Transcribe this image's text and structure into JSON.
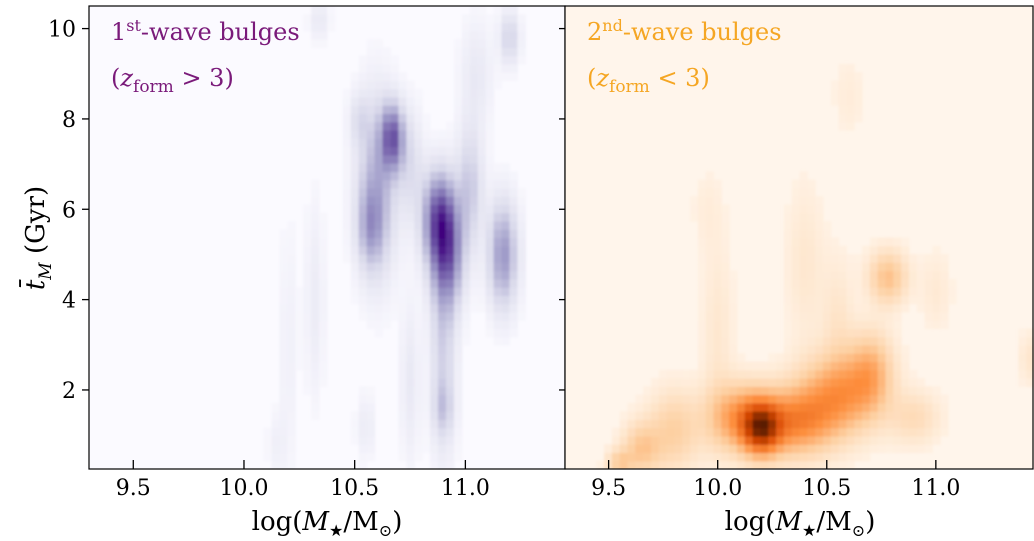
{
  "chart_data": [
    {
      "type": "heatmap",
      "panel": "left",
      "colormap": "Purples",
      "background_color": "#fbfaff",
      "peak_color": "#3f007d",
      "annotation_color": "#7a1a7a",
      "annotation": {
        "line1_pre": "1",
        "line1_sup": "st",
        "line1_post": "-wave bulges",
        "line2_open": "(",
        "line2_var": "z",
        "line2_sub": "form",
        "line2_rel": " > 3)"
      },
      "xlabel": {
        "pre": "log(",
        "var": "M",
        "sub": "★",
        "mid": "/M",
        "sub2": "⊙",
        "post": ")"
      },
      "xlim": [
        9.3,
        11.45
      ],
      "ylim": [
        0.25,
        10.5
      ],
      "xticks": [
        9.5,
        10.0,
        10.5,
        11.0
      ],
      "xtick_labels": [
        "9.5",
        "10.0",
        "10.5",
        "11.0"
      ],
      "blobs": [
        {
          "x": 10.67,
          "y": 7.6,
          "sx": 0.035,
          "sy": 0.5,
          "w": 0.95
        },
        {
          "x": 10.6,
          "y": 6.5,
          "sx": 0.06,
          "sy": 1.3,
          "w": 0.55
        },
        {
          "x": 10.57,
          "y": 5.6,
          "sx": 0.04,
          "sy": 0.6,
          "w": 0.4
        },
        {
          "x": 10.88,
          "y": 5.8,
          "sx": 0.05,
          "sy": 0.7,
          "w": 1.0
        },
        {
          "x": 10.92,
          "y": 5.0,
          "sx": 0.05,
          "sy": 0.8,
          "w": 0.8
        },
        {
          "x": 10.9,
          "y": 3.0,
          "sx": 0.04,
          "sy": 1.6,
          "w": 0.35
        },
        {
          "x": 10.9,
          "y": 1.6,
          "sx": 0.03,
          "sy": 0.4,
          "w": 0.25
        },
        {
          "x": 11.02,
          "y": 6.5,
          "sx": 0.04,
          "sy": 0.9,
          "w": 0.4
        },
        {
          "x": 11.17,
          "y": 5.0,
          "sx": 0.045,
          "sy": 0.8,
          "w": 0.7
        },
        {
          "x": 11.2,
          "y": 9.8,
          "sx": 0.03,
          "sy": 0.4,
          "w": 0.35
        },
        {
          "x": 10.52,
          "y": 8.0,
          "sx": 0.03,
          "sy": 0.4,
          "w": 0.2
        },
        {
          "x": 10.34,
          "y": 10.2,
          "sx": 0.03,
          "sy": 0.3,
          "w": 0.15
        },
        {
          "x": 10.32,
          "y": 4.0,
          "sx": 0.03,
          "sy": 1.5,
          "w": 0.12
        },
        {
          "x": 10.75,
          "y": 2.2,
          "sx": 0.03,
          "sy": 1.2,
          "w": 0.15
        },
        {
          "x": 10.75,
          "y": 7.0,
          "sx": 0.04,
          "sy": 0.8,
          "w": 0.25
        },
        {
          "x": 10.2,
          "y": 3.0,
          "sx": 0.03,
          "sy": 1.8,
          "w": 0.08
        },
        {
          "x": 10.15,
          "y": 0.8,
          "sx": 0.03,
          "sy": 0.5,
          "w": 0.08
        },
        {
          "x": 10.55,
          "y": 1.2,
          "sx": 0.03,
          "sy": 0.5,
          "w": 0.12
        },
        {
          "x": 11.05,
          "y": 9.0,
          "sx": 0.05,
          "sy": 0.8,
          "w": 0.15
        }
      ]
    },
    {
      "type": "heatmap",
      "panel": "right",
      "colormap": "Oranges",
      "background_color": "#fff5eb",
      "peak_color": "#5a1a05",
      "annotation_color": "#f5a623",
      "annotation": {
        "line1_pre": "2",
        "line1_sup": "nd",
        "line1_post": "-wave bulges",
        "line2_open": "(",
        "line2_var": "z",
        "line2_sub": "form",
        "line2_rel": " < 3)"
      },
      "xlabel": {
        "pre": "log(",
        "var": "M",
        "sub": "★",
        "mid": "/M",
        "sub2": "⊙",
        "post": ")"
      },
      "xlim": [
        9.3,
        11.45
      ],
      "ylim": [
        0.25,
        10.5
      ],
      "xticks": [
        9.5,
        10.0,
        10.5,
        11.0
      ],
      "xtick_labels": [
        "9.5",
        "10.0",
        "10.5",
        "11.0"
      ],
      "blobs": [
        {
          "x": 10.2,
          "y": 1.15,
          "sx": 0.06,
          "sy": 0.4,
          "w": 1.0
        },
        {
          "x": 10.1,
          "y": 1.4,
          "sx": 0.1,
          "sy": 0.5,
          "w": 0.6
        },
        {
          "x": 10.35,
          "y": 1.3,
          "sx": 0.12,
          "sy": 0.5,
          "w": 0.7
        },
        {
          "x": 10.55,
          "y": 1.9,
          "sx": 0.12,
          "sy": 0.6,
          "w": 0.6
        },
        {
          "x": 10.7,
          "y": 2.4,
          "sx": 0.07,
          "sy": 0.6,
          "w": 0.45
        },
        {
          "x": 10.78,
          "y": 4.5,
          "sx": 0.06,
          "sy": 0.4,
          "w": 0.4
        },
        {
          "x": 9.8,
          "y": 1.1,
          "sx": 0.08,
          "sy": 0.6,
          "w": 0.3
        },
        {
          "x": 9.65,
          "y": 0.7,
          "sx": 0.06,
          "sy": 0.4,
          "w": 0.35
        },
        {
          "x": 9.55,
          "y": 0.4,
          "sx": 0.04,
          "sy": 0.2,
          "w": 0.3
        },
        {
          "x": 10.0,
          "y": 3.2,
          "sx": 0.05,
          "sy": 1.5,
          "w": 0.1
        },
        {
          "x": 10.4,
          "y": 4.8,
          "sx": 0.06,
          "sy": 1.2,
          "w": 0.1
        },
        {
          "x": 10.55,
          "y": 3.5,
          "sx": 0.05,
          "sy": 1.0,
          "w": 0.12
        },
        {
          "x": 10.6,
          "y": 8.5,
          "sx": 0.05,
          "sy": 0.6,
          "w": 0.06
        },
        {
          "x": 11.45,
          "y": 2.7,
          "sx": 0.05,
          "sy": 0.4,
          "w": 0.12
        },
        {
          "x": 11.0,
          "y": 4.2,
          "sx": 0.05,
          "sy": 0.6,
          "w": 0.08
        },
        {
          "x": 9.95,
          "y": 6.0,
          "sx": 0.05,
          "sy": 0.6,
          "w": 0.05
        },
        {
          "x": 10.9,
          "y": 1.4,
          "sx": 0.08,
          "sy": 0.4,
          "w": 0.2
        }
      ]
    }
  ],
  "shared_axis": {
    "ylabel": {
      "var": "t̄",
      "sub": "M",
      "post": " (Gyr)"
    },
    "yticks": [
      2,
      4,
      6,
      8,
      10
    ],
    "ytick_labels": [
      "2",
      "4",
      "6",
      "8",
      "10"
    ]
  }
}
